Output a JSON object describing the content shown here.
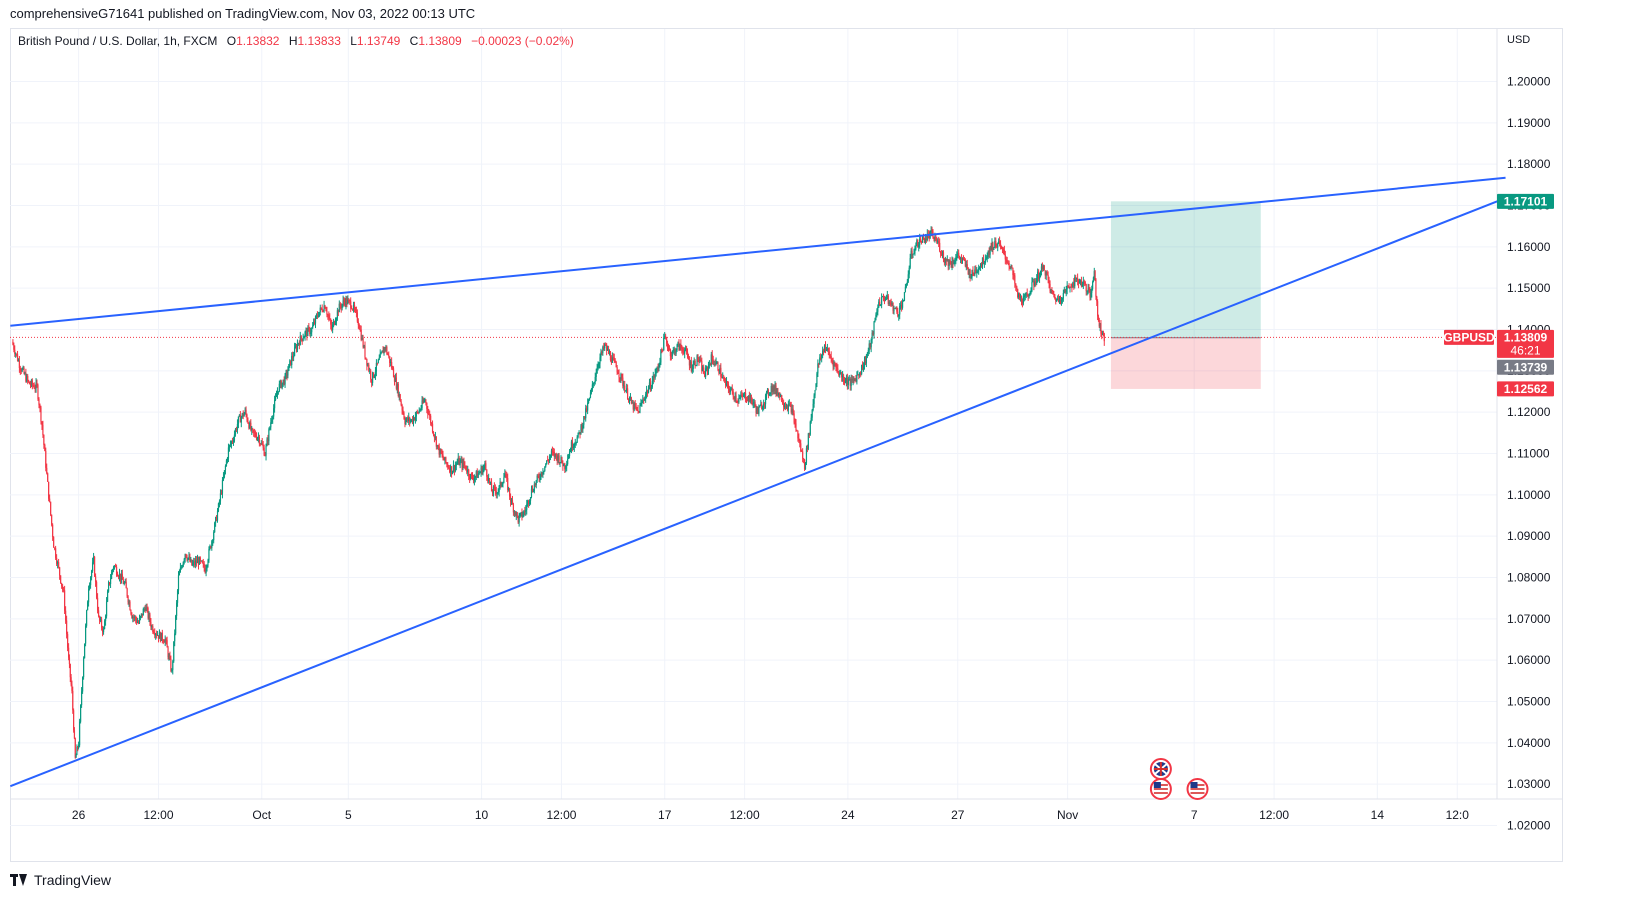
{
  "publisher": "comprehensiveG71641 published on TradingView.com, Nov 03, 2022 00:13 UTC",
  "legend": {
    "symbol": "British Pound / U.S. Dollar, 1h, FXCM",
    "open_label": "O",
    "open": "1.13832",
    "high_label": "H",
    "high": "1.13833",
    "low_label": "L",
    "low": "1.13749",
    "close_label": "C",
    "close": "1.13809",
    "change": "−0.00023 (−0.02%)"
  },
  "footer": {
    "brand": "TradingView"
  },
  "chart_data": {
    "type": "candlestick",
    "currency": "USD",
    "y_range": [
      1.015,
      1.215
    ],
    "y_ticks": [
      "1.02000",
      "1.03000",
      "1.04000",
      "1.05000",
      "1.06000",
      "1.07000",
      "1.08000",
      "1.09000",
      "1.10000",
      "1.11000",
      "1.12000",
      "1.13000",
      "1.14000",
      "1.15000",
      "1.16000",
      "1.17000",
      "1.18000",
      "1.19000",
      "1.20000"
    ],
    "x_ticks": [
      {
        "label": "26",
        "t": 40
      },
      {
        "label": "12:00",
        "t": 88
      },
      {
        "label": "Oct",
        "t": 150
      },
      {
        "label": "5",
        "t": 202
      },
      {
        "label": "10",
        "t": 282
      },
      {
        "label": "12:00",
        "t": 330
      },
      {
        "label": "17",
        "t": 392
      },
      {
        "label": "12:00",
        "t": 440
      },
      {
        "label": "24",
        "t": 502
      },
      {
        "label": "27",
        "t": 568
      },
      {
        "label": "Nov",
        "t": 634
      },
      {
        "label": "7",
        "t": 710
      },
      {
        "label": "12:00",
        "t": 758
      },
      {
        "label": "14",
        "t": 820
      },
      {
        "label": "12:0",
        "t": 868
      }
    ],
    "x_range": [
      0,
      900
    ],
    "close_path": [
      [
        0,
        1.137
      ],
      [
        5,
        1.131
      ],
      [
        10,
        1.127
      ],
      [
        15,
        1.126
      ],
      [
        18,
        1.117
      ],
      [
        22,
        1.1
      ],
      [
        25,
        1.088
      ],
      [
        28,
        1.082
      ],
      [
        31,
        1.076
      ],
      [
        34,
        1.06
      ],
      [
        36,
        1.052
      ],
      [
        38,
        1.036
      ],
      [
        40,
        1.04
      ],
      [
        43,
        1.061
      ],
      [
        46,
        1.078
      ],
      [
        49,
        1.084
      ],
      [
        52,
        1.07
      ],
      [
        55,
        1.067
      ],
      [
        58,
        1.078
      ],
      [
        61,
        1.083
      ],
      [
        64,
        1.081
      ],
      [
        68,
        1.078
      ],
      [
        72,
        1.071
      ],
      [
        76,
        1.069
      ],
      [
        80,
        1.073
      ],
      [
        84,
        1.068
      ],
      [
        88,
        1.066
      ],
      [
        92,
        1.065
      ],
      [
        96,
        1.057
      ],
      [
        100,
        1.08
      ],
      [
        104,
        1.086
      ],
      [
        108,
        1.083
      ],
      [
        112,
        1.084
      ],
      [
        116,
        1.082
      ],
      [
        120,
        1.089
      ],
      [
        124,
        1.097
      ],
      [
        127,
        1.104
      ],
      [
        130,
        1.111
      ],
      [
        133,
        1.114
      ],
      [
        136,
        1.118
      ],
      [
        140,
        1.12
      ],
      [
        144,
        1.115
      ],
      [
        148,
        1.114
      ],
      [
        152,
        1.11
      ],
      [
        156,
        1.119
      ],
      [
        160,
        1.126
      ],
      [
        164,
        1.128
      ],
      [
        168,
        1.133
      ],
      [
        172,
        1.137
      ],
      [
        176,
        1.139
      ],
      [
        180,
        1.14
      ],
      [
        184,
        1.144
      ],
      [
        188,
        1.146
      ],
      [
        192,
        1.14
      ],
      [
        196,
        1.145
      ],
      [
        200,
        1.147
      ],
      [
        204,
        1.146
      ],
      [
        208,
        1.142
      ],
      [
        212,
        1.134
      ],
      [
        216,
        1.128
      ],
      [
        220,
        1.132
      ],
      [
        224,
        1.136
      ],
      [
        228,
        1.131
      ],
      [
        232,
        1.125
      ],
      [
        236,
        1.118
      ],
      [
        240,
        1.118
      ],
      [
        244,
        1.12
      ],
      [
        248,
        1.123
      ],
      [
        252,
        1.117
      ],
      [
        256,
        1.111
      ],
      [
        260,
        1.108
      ],
      [
        264,
        1.106
      ],
      [
        268,
        1.108
      ],
      [
        272,
        1.107
      ],
      [
        276,
        1.104
      ],
      [
        280,
        1.105
      ],
      [
        284,
        1.107
      ],
      [
        288,
        1.101
      ],
      [
        292,
        1.101
      ],
      [
        296,
        1.105
      ],
      [
        300,
        1.098
      ],
      [
        304,
        1.094
      ],
      [
        308,
        1.096
      ],
      [
        312,
        1.101
      ],
      [
        316,
        1.104
      ],
      [
        320,
        1.107
      ],
      [
        324,
        1.11
      ],
      [
        328,
        1.109
      ],
      [
        332,
        1.107
      ],
      [
        336,
        1.112
      ],
      [
        340,
        1.114
      ],
      [
        344,
        1.119
      ],
      [
        348,
        1.125
      ],
      [
        352,
        1.132
      ],
      [
        356,
        1.136
      ],
      [
        360,
        1.133
      ],
      [
        364,
        1.13
      ],
      [
        368,
        1.126
      ],
      [
        372,
        1.122
      ],
      [
        376,
        1.12
      ],
      [
        380,
        1.124
      ],
      [
        384,
        1.127
      ],
      [
        388,
        1.131
      ],
      [
        392,
        1.138
      ],
      [
        396,
        1.134
      ],
      [
        400,
        1.136
      ],
      [
        404,
        1.135
      ],
      [
        408,
        1.131
      ],
      [
        412,
        1.133
      ],
      [
        416,
        1.129
      ],
      [
        420,
        1.133
      ],
      [
        424,
        1.131
      ],
      [
        428,
        1.127
      ],
      [
        432,
        1.125
      ],
      [
        436,
        1.123
      ],
      [
        440,
        1.124
      ],
      [
        444,
        1.123
      ],
      [
        448,
        1.12
      ],
      [
        452,
        1.123
      ],
      [
        456,
        1.126
      ],
      [
        460,
        1.125
      ],
      [
        464,
        1.122
      ],
      [
        468,
        1.121
      ],
      [
        472,
        1.114
      ],
      [
        476,
        1.107
      ],
      [
        480,
        1.119
      ],
      [
        484,
        1.131
      ],
      [
        488,
        1.136
      ],
      [
        492,
        1.133
      ],
      [
        496,
        1.13
      ],
      [
        500,
        1.128
      ],
      [
        504,
        1.127
      ],
      [
        508,
        1.129
      ],
      [
        512,
        1.132
      ],
      [
        516,
        1.137
      ],
      [
        520,
        1.146
      ],
      [
        524,
        1.148
      ],
      [
        528,
        1.146
      ],
      [
        532,
        1.144
      ],
      [
        536,
        1.148
      ],
      [
        540,
        1.158
      ],
      [
        544,
        1.161
      ],
      [
        548,
        1.162
      ],
      [
        552,
        1.163
      ],
      [
        556,
        1.161
      ],
      [
        560,
        1.157
      ],
      [
        564,
        1.156
      ],
      [
        568,
        1.158
      ],
      [
        572,
        1.156
      ],
      [
        576,
        1.153
      ],
      [
        580,
        1.155
      ],
      [
        584,
        1.157
      ],
      [
        588,
        1.16
      ],
      [
        592,
        1.161
      ],
      [
        596,
        1.158
      ],
      [
        600,
        1.155
      ],
      [
        604,
        1.148
      ],
      [
        608,
        1.147
      ],
      [
        612,
        1.15
      ],
      [
        616,
        1.153
      ],
      [
        620,
        1.155
      ],
      [
        624,
        1.149
      ],
      [
        628,
        1.147
      ],
      [
        632,
        1.149
      ],
      [
        636,
        1.151
      ],
      [
        640,
        1.152
      ],
      [
        644,
        1.151
      ],
      [
        648,
        1.148
      ],
      [
        650,
        1.155
      ],
      [
        652,
        1.143
      ],
      [
        654,
        1.14
      ],
      [
        656,
        1.138
      ]
    ],
    "trendlines": [
      {
        "name": "upper",
        "from": [
          -1,
          1.1409
        ],
        "to": [
          897,
          1.1767
        ]
      },
      {
        "name": "lower",
        "from": [
          -1,
          1.0295
        ],
        "to": [
          897,
          1.1718
        ]
      }
    ],
    "current_price_line": 1.13809,
    "position_tool": {
      "t_start": 660,
      "t_end": 750,
      "entry": 1.138,
      "target": 1.17101,
      "stop": 1.12562
    },
    "price_labels": [
      {
        "text": "1.17101",
        "price": 1.17101,
        "color": "#089981"
      },
      {
        "text": "GBPUSD",
        "price": 1.13809,
        "color": "#f23645",
        "side": "left"
      },
      {
        "text": "1.13809",
        "price": 1.13809,
        "color": "#f23645"
      },
      {
        "text": "46:21",
        "price": 1.13809,
        "color": "#f23645"
      },
      {
        "text": "1.13739",
        "price": 1.13739,
        "color": "#787b86"
      },
      {
        "text": "1.12562",
        "price": 1.12562,
        "color": "#f23645"
      }
    ],
    "events": [
      {
        "t": 690,
        "row": 0,
        "flag": "uk"
      },
      {
        "t": 690,
        "row": 1,
        "flag": "us"
      },
      {
        "t": 712,
        "row": 1,
        "flag": "us"
      }
    ],
    "colors": {
      "up": "#089981",
      "down": "#f23645",
      "trend": "#2962ff"
    }
  }
}
